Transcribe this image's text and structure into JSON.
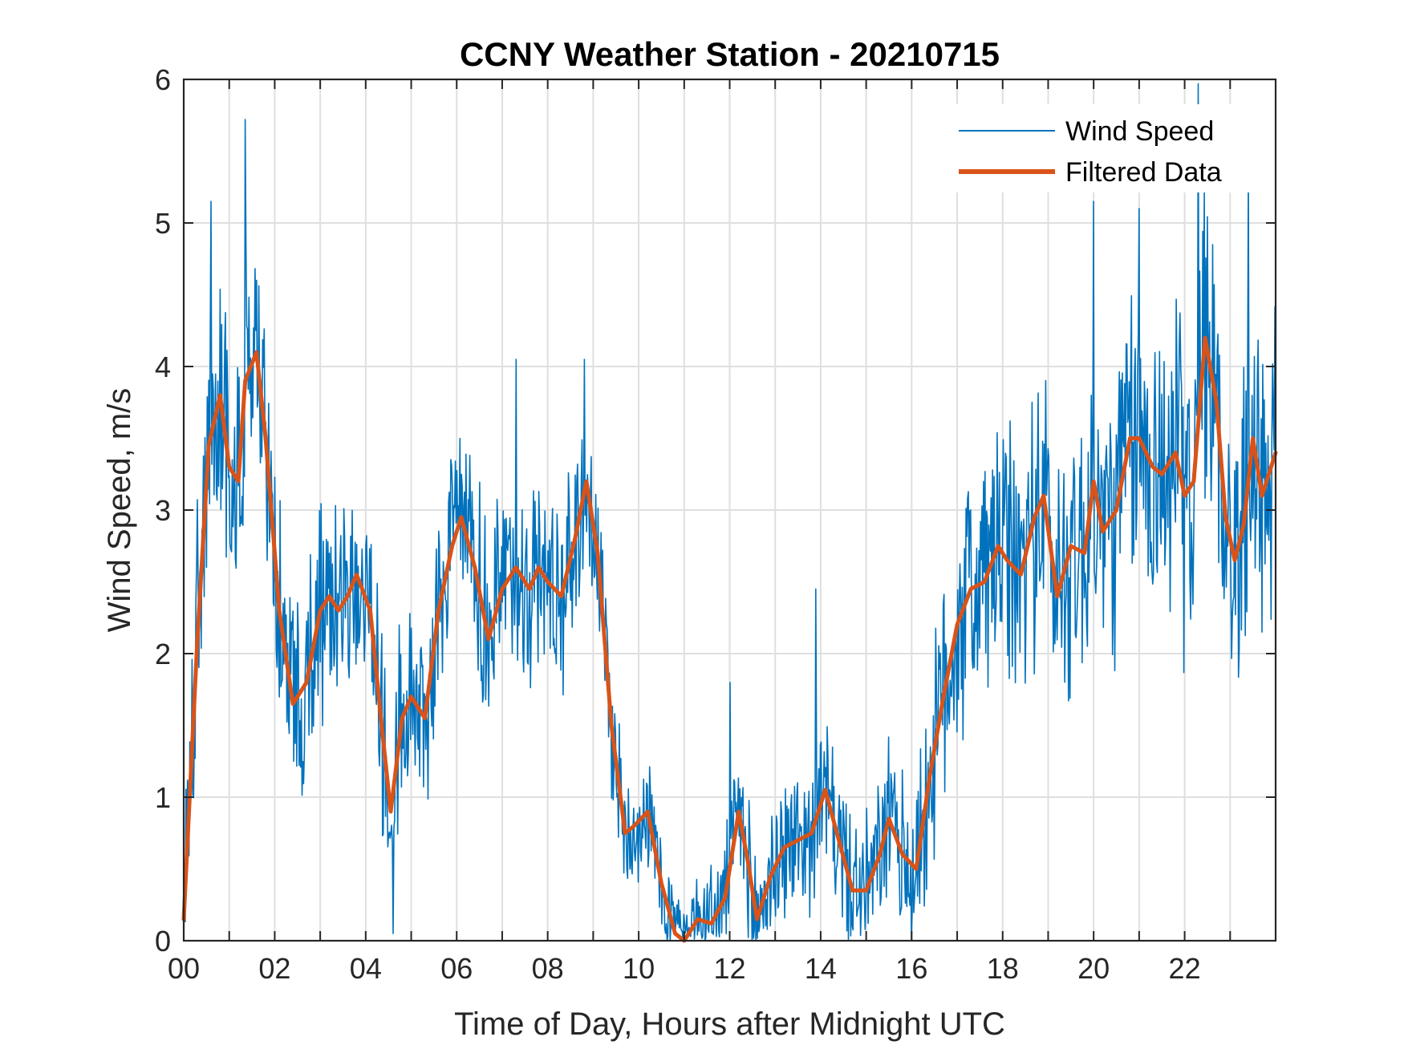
{
  "chart_data": {
    "type": "line",
    "title": "CCNY Weather Station - 20210715",
    "xlabel": "Time of Day, Hours after Midnight UTC",
    "ylabel": "Wind Speed, m/s",
    "xlim": [
      0,
      24
    ],
    "ylim": [
      0,
      6
    ],
    "grid": true,
    "legend_position": "top-right",
    "x_ticks_major": [
      0,
      2,
      4,
      6,
      8,
      10,
      12,
      14,
      16,
      18,
      20,
      22
    ],
    "x_tick_labels": [
      "00",
      "02",
      "04",
      "06",
      "08",
      "10",
      "12",
      "14",
      "16",
      "18",
      "20",
      "22"
    ],
    "x_ticks_minor": [
      1,
      3,
      5,
      7,
      9,
      11,
      13,
      15,
      17,
      19,
      21,
      23
    ],
    "y_ticks": [
      0,
      1,
      2,
      3,
      4,
      5,
      6
    ],
    "y_tick_labels": [
      "0",
      "1",
      "2",
      "3",
      "4",
      "5",
      "6"
    ],
    "series": [
      {
        "name": "Wind Speed",
        "color": "#0072BD",
        "style": "thin-noisy",
        "noise_amplitude": [
          [
            0,
            0.8
          ],
          [
            1,
            0.9
          ],
          [
            2,
            0.8
          ],
          [
            4,
            0.7
          ],
          [
            6,
            0.7
          ],
          [
            8,
            0.7
          ],
          [
            9,
            0.6
          ],
          [
            10,
            0.4
          ],
          [
            11,
            0.35
          ],
          [
            13,
            0.5
          ],
          [
            15,
            0.5
          ],
          [
            16,
            0.6
          ],
          [
            17,
            0.9
          ],
          [
            20,
            1.0
          ],
          [
            22,
            1.1
          ],
          [
            24,
            1.0
          ]
        ],
        "spikes": [
          {
            "x": 0.6,
            "y": 5.15
          },
          {
            "x": 1.35,
            "y": 5.72
          },
          {
            "x": 1.6,
            "y": 4.6
          },
          {
            "x": 7.3,
            "y": 4.05
          },
          {
            "x": 8.8,
            "y": 4.05
          },
          {
            "x": 12.0,
            "y": 1.8
          },
          {
            "x": 13.9,
            "y": 2.45
          },
          {
            "x": 20.0,
            "y": 5.15
          },
          {
            "x": 22.3,
            "y": 5.97
          },
          {
            "x": 23.4,
            "y": 5.35
          },
          {
            "x": 21.0,
            "y": 5.1
          },
          {
            "x": 4.6,
            "y": 0.05
          },
          {
            "x": 12.5,
            "y": 0.0
          },
          {
            "x": 16.0,
            "y": 0.0
          }
        ]
      },
      {
        "name": "Filtered Data",
        "color": "#D95319",
        "style": "thick",
        "x": [
          0.0,
          0.3,
          0.55,
          0.8,
          1.0,
          1.2,
          1.35,
          1.6,
          1.8,
          2.1,
          2.4,
          2.7,
          3.0,
          3.2,
          3.4,
          3.6,
          3.8,
          4.1,
          4.35,
          4.55,
          4.8,
          5.0,
          5.3,
          5.6,
          5.9,
          6.1,
          6.4,
          6.7,
          7.0,
          7.3,
          7.6,
          7.8,
          8.0,
          8.3,
          8.6,
          8.85,
          9.1,
          9.4,
          9.7,
          9.9,
          10.2,
          10.5,
          10.8,
          11.0,
          11.3,
          11.6,
          11.9,
          12.2,
          12.4,
          12.6,
          12.9,
          13.2,
          13.5,
          13.8,
          14.1,
          14.4,
          14.7,
          15.0,
          15.3,
          15.5,
          15.8,
          16.1,
          16.4,
          16.7,
          17.0,
          17.3,
          17.6,
          17.9,
          18.1,
          18.4,
          18.7,
          18.9,
          19.2,
          19.5,
          19.8,
          20.0,
          20.2,
          20.5,
          20.8,
          21.0,
          21.3,
          21.5,
          21.8,
          22.0,
          22.2,
          22.45,
          22.7,
          22.9,
          23.1,
          23.3,
          23.5,
          23.7,
          24.0
        ],
        "y": [
          0.15,
          2.1,
          3.45,
          3.8,
          3.3,
          3.2,
          3.9,
          4.1,
          3.5,
          2.3,
          1.65,
          1.8,
          2.3,
          2.4,
          2.3,
          2.4,
          2.55,
          2.3,
          1.5,
          0.9,
          1.55,
          1.7,
          1.55,
          2.3,
          2.75,
          2.95,
          2.6,
          2.1,
          2.45,
          2.6,
          2.45,
          2.6,
          2.5,
          2.4,
          2.8,
          3.2,
          2.7,
          1.5,
          0.75,
          0.8,
          0.9,
          0.4,
          0.05,
          0.0,
          0.15,
          0.12,
          0.3,
          0.9,
          0.55,
          0.15,
          0.45,
          0.65,
          0.7,
          0.75,
          1.05,
          0.7,
          0.35,
          0.35,
          0.6,
          0.85,
          0.6,
          0.5,
          1.15,
          1.7,
          2.2,
          2.45,
          2.5,
          2.75,
          2.65,
          2.55,
          2.95,
          3.1,
          2.4,
          2.75,
          2.7,
          3.2,
          2.85,
          3.0,
          3.5,
          3.5,
          3.3,
          3.25,
          3.4,
          3.1,
          3.2,
          4.2,
          3.75,
          2.95,
          2.65,
          2.9,
          3.5,
          3.1,
          3.4
        ]
      }
    ]
  }
}
